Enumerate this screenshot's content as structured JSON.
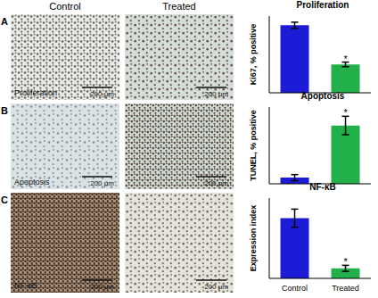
{
  "figure": {
    "column_headers": [
      "Control",
      "Treated"
    ],
    "panels": [
      {
        "label": "A",
        "image_label": "Proliferation",
        "scale_bars": [
          "200 μm",
          "200 μm"
        ]
      },
      {
        "label": "B",
        "image_label": "Apoptosis",
        "scale_bars": [
          "200 μm",
          "200 μm"
        ]
      },
      {
        "label": "C",
        "image_label": "NF-κB",
        "scale_bars": [
          "200 μm",
          "200 μm"
        ]
      }
    ]
  },
  "chart_data": [
    {
      "type": "bar",
      "title": "Proliferation",
      "y_label": "Ki67, % positive",
      "categories": [
        "Control",
        "Treated"
      ],
      "values": [
        88,
        37
      ],
      "errors": [
        4,
        3
      ],
      "colors": [
        "#1c1cd6",
        "#22b04a"
      ],
      "ylim": [
        0,
        100
      ],
      "tick_labels": false,
      "annotations": [
        {
          "category": "Treated",
          "text": "*"
        }
      ]
    },
    {
      "type": "bar",
      "title": "Apoptosis",
      "y_label": "TUNEL, % positive",
      "categories": [
        "Control",
        "Treated"
      ],
      "values": [
        2,
        19
      ],
      "errors": [
        1,
        3
      ],
      "colors": [
        "#1c1cd6",
        "#22b04a"
      ],
      "ylim": [
        0,
        25
      ],
      "tick_labels": false,
      "annotations": [
        {
          "category": "Treated",
          "text": "*"
        }
      ]
    },
    {
      "type": "bar",
      "title": "NF-κB",
      "y_label": "Expression index",
      "categories": [
        "Control",
        "Treated"
      ],
      "values": [
        30,
        5
      ],
      "errors": [
        4.5,
        1.5
      ],
      "colors": [
        "#1c1cd6",
        "#22b04a"
      ],
      "ylim": [
        0,
        40
      ],
      "tick_labels": "x",
      "annotations": [
        {
          "category": "Treated",
          "text": "*"
        }
      ]
    }
  ]
}
